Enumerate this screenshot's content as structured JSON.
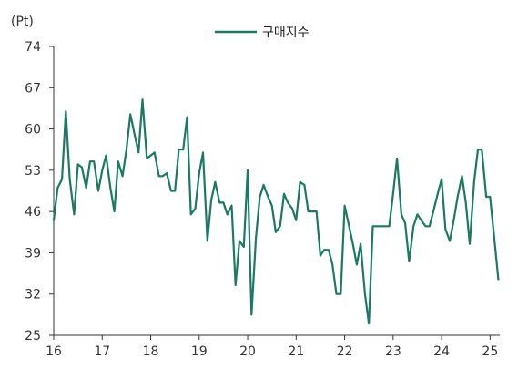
{
  "chart_data": {
    "type": "line",
    "unit_label": "(Pt)",
    "title": "",
    "xlabel": "",
    "ylabel": "",
    "ylim": [
      25,
      74
    ],
    "y_ticks": [
      74,
      67,
      60,
      53,
      46,
      39,
      32,
      25
    ],
    "xlim": [
      2016,
      2025.2
    ],
    "x_ticks": [
      {
        "value": 2016,
        "label": "16"
      },
      {
        "value": 2017,
        "label": "17"
      },
      {
        "value": 2018,
        "label": "18"
      },
      {
        "value": 2019,
        "label": "19"
      },
      {
        "value": 2020,
        "label": "20"
      },
      {
        "value": 2021,
        "label": "21"
      },
      {
        "value": 2022,
        "label": "22"
      },
      {
        "value": 2023,
        "label": "23"
      },
      {
        "value": 2024,
        "label": "24"
      },
      {
        "value": 2025,
        "label": "25"
      }
    ],
    "grid": false,
    "legend_position": "top-center",
    "series": [
      {
        "name": "구매지수",
        "color": "#1a7a63",
        "x": [
          2016.0,
          2016.08,
          2016.17,
          2016.25,
          2016.33,
          2016.42,
          2016.5,
          2016.58,
          2016.67,
          2016.75,
          2016.83,
          2016.92,
          2017.0,
          2017.08,
          2017.17,
          2017.25,
          2017.33,
          2017.42,
          2017.5,
          2017.58,
          2017.67,
          2017.75,
          2017.83,
          2017.92,
          2018.0,
          2018.08,
          2018.17,
          2018.25,
          2018.33,
          2018.42,
          2018.5,
          2018.58,
          2018.67,
          2018.75,
          2018.83,
          2018.92,
          2019.0,
          2019.08,
          2019.17,
          2019.25,
          2019.33,
          2019.42,
          2019.5,
          2019.58,
          2019.67,
          2019.75,
          2019.83,
          2019.92,
          2020.0,
          2020.08,
          2020.17,
          2020.25,
          2020.33,
          2020.42,
          2020.5,
          2020.58,
          2020.67,
          2020.75,
          2020.83,
          2020.92,
          2021.0,
          2021.08,
          2021.17,
          2021.25,
          2021.33,
          2021.42,
          2021.5,
          2021.58,
          2021.67,
          2021.75,
          2021.83,
          2021.92,
          2022.0,
          2022.08,
          2022.17,
          2022.25,
          2022.33,
          2022.42,
          2022.5,
          2022.58,
          2022.67,
          2022.75,
          2022.83,
          2022.92,
          2023.0,
          2023.08,
          2023.17,
          2023.25,
          2023.33,
          2023.42,
          2023.5,
          2023.58,
          2023.67,
          2023.75,
          2023.83,
          2023.92,
          2024.0,
          2024.08,
          2024.17,
          2024.25,
          2024.33,
          2024.42,
          2024.5,
          2024.58,
          2024.67,
          2024.75,
          2024.83,
          2024.92,
          2025.0,
          2025.08,
          2025.17
        ],
        "values": [
          44.5,
          50.0,
          51.5,
          63.0,
          51.5,
          45.5,
          54.0,
          53.5,
          50.0,
          54.5,
          54.5,
          49.5,
          53.0,
          55.5,
          50.0,
          46.0,
          54.5,
          52.0,
          56.5,
          62.5,
          59.0,
          56.0,
          65.0,
          55.0,
          55.5,
          56.0,
          52.0,
          52.0,
          52.5,
          49.5,
          49.5,
          56.5,
          56.5,
          62.0,
          45.5,
          46.5,
          52.5,
          56.0,
          41.0,
          48.0,
          51.0,
          47.5,
          47.5,
          45.5,
          47.0,
          33.5,
          41.0,
          40.0,
          53.0,
          28.5,
          41.5,
          48.5,
          50.5,
          48.5,
          47.0,
          42.5,
          43.5,
          49.0,
          47.5,
          46.5,
          44.5,
          51.0,
          50.5,
          46.0,
          46.0,
          46.0,
          38.5,
          39.5,
          39.5,
          37.0,
          32.0,
          32.0,
          47.0,
          44.0,
          40.5,
          37.0,
          40.5,
          32.0,
          27.0,
          43.5,
          43.5,
          43.5,
          43.5,
          43.5,
          49.0,
          55.0,
          45.5,
          44.0,
          37.5,
          43.5,
          45.5,
          44.5,
          43.5,
          43.5,
          46.0,
          49.0,
          51.5,
          43.0,
          41.0,
          44.5,
          48.5,
          52.0,
          47.5,
          40.5,
          51.0,
          56.5,
          56.5,
          48.5,
          48.5,
          42.0,
          34.5
        ]
      }
    ]
  }
}
